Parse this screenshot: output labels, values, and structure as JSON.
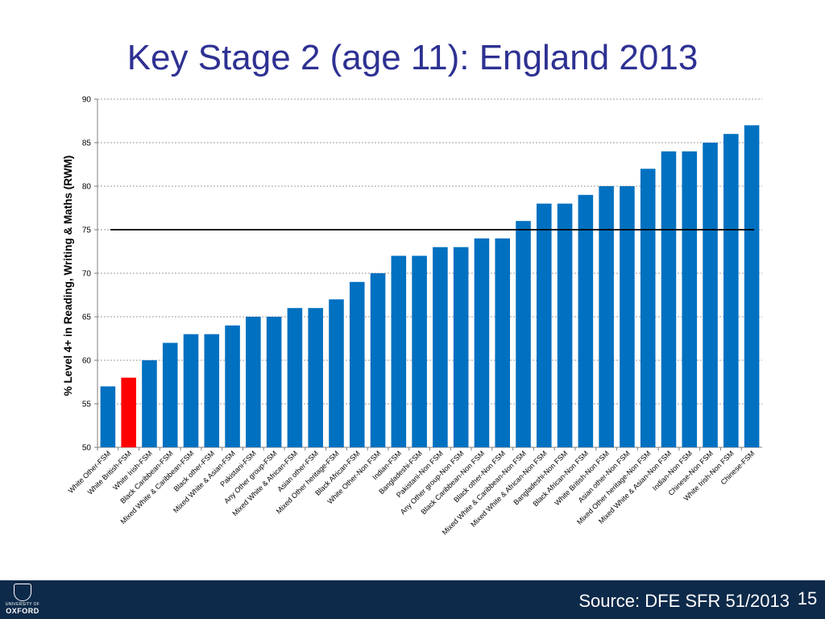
{
  "slide": {
    "title": "Key Stage 2 (age 11): England 2013",
    "source": "Source:  DFE SFR 51/2013",
    "page_number": "15",
    "logo": {
      "line1": "UNIVERSITY OF",
      "line2": "OXFORD",
      "icon": "oxford-crest-icon"
    }
  },
  "colors": {
    "title": "#2E3192",
    "bar": "#0070C0",
    "highlight_bar": "#FF0000",
    "footer": "#0E2A4A"
  },
  "chart_data": {
    "type": "bar",
    "title": "",
    "xlabel": "",
    "ylabel": "% Level 4+ in Reading, Writing & Maths (RWM)",
    "ylim": [
      50,
      90
    ],
    "yticks": [
      50,
      55,
      60,
      65,
      70,
      75,
      80,
      85,
      90
    ],
    "grid": true,
    "reference_line": 75,
    "highlight_category": "White British-FSM",
    "categories": [
      "White Other-FSM",
      "White British-FSM",
      "White Irish-FSM",
      "Black Caribbean-FSM",
      "Mixed White & Caribbean-FSM",
      "Black other-FSM",
      "Mixed White & Asian-FSM",
      "Pakistani-FSM",
      "Any Other group-FSM",
      "Mixed White & African-FSM",
      "Asian other-FSM",
      "Mixed Other heritage-FSM",
      "Black African-FSM",
      "White Other-Non FSM",
      "Indian-FSM",
      "Bangladeshi-FSM",
      "Pakistani-Non FSM",
      "Any Other group-Non FSM",
      "Black Caribbean-Non FSM",
      "Black other-Non FSM",
      "Mixed White & Caribbean-Non FSM",
      "Mixed White & African-Non FSM",
      "Bangladeshi-Non FSM",
      "Black African-Non FSM",
      "White British-Non FSM",
      "Asian other-Non FSM",
      "Mixed Other heritage-Non FSM",
      "Mixed White & Asian-Non FSM",
      "Indian-Non FSM",
      "Chinese-Non FSM",
      "White Irish-Non FSM",
      "Chinese-FSM"
    ],
    "values": [
      57,
      58,
      60,
      62,
      63,
      63,
      64,
      65,
      65,
      66,
      66,
      67,
      69,
      70,
      72,
      72,
      73,
      73,
      74,
      74,
      76,
      78,
      78,
      79,
      80,
      80,
      82,
      84,
      84,
      85,
      86,
      87
    ]
  }
}
